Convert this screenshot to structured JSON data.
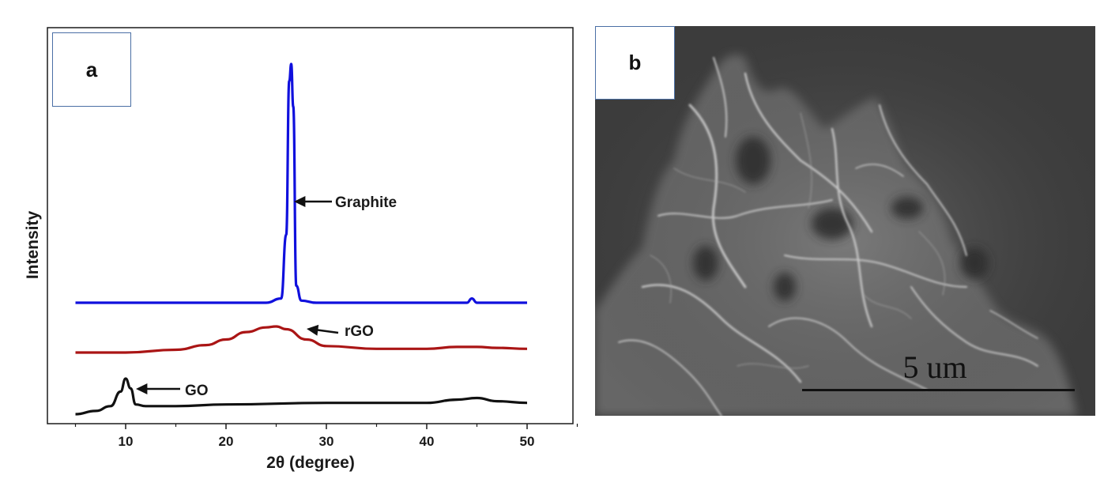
{
  "panel_a": {
    "label": "a",
    "chart_data": {
      "type": "line",
      "xlabel": "2θ (degree)",
      "ylabel": "Intensity",
      "xlim": [
        0,
        55
      ],
      "xticks": [
        10,
        20,
        30,
        40,
        50
      ],
      "y_ticks_shown": false,
      "grid": false,
      "series": [
        {
          "name": "Graphite",
          "color": "#1010dd",
          "x": [
            5,
            10,
            15,
            20,
            24,
            25.5,
            26.0,
            26.3,
            26.5,
            26.7,
            27.0,
            27.5,
            29,
            35,
            40,
            44,
            44.5,
            45,
            50
          ],
          "y": [
            0.44,
            0.44,
            0.44,
            0.44,
            0.44,
            0.45,
            0.6,
            0.96,
            1.0,
            0.9,
            0.48,
            0.445,
            0.44,
            0.44,
            0.44,
            0.44,
            0.45,
            0.44,
            0.44
          ]
        },
        {
          "name": "rGO",
          "color": "#aa1515",
          "x": [
            5,
            10,
            15,
            18,
            20,
            22,
            24,
            25,
            26,
            28,
            30,
            35,
            40,
            43,
            45,
            47,
            50
          ],
          "y": [
            0.18,
            0.18,
            0.195,
            0.22,
            0.25,
            0.29,
            0.315,
            0.32,
            0.305,
            0.25,
            0.215,
            0.2,
            0.2,
            0.21,
            0.21,
            0.205,
            0.2
          ]
        },
        {
          "name": "GO",
          "color": "#111111",
          "x": [
            5,
            7,
            8.5,
            9.5,
            10,
            10.5,
            11,
            12,
            15,
            20,
            30,
            40,
            43,
            45,
            47,
            50
          ],
          "y": [
            0.0,
            0.01,
            0.025,
            0.07,
            0.11,
            0.08,
            0.03,
            0.025,
            0.025,
            0.03,
            0.035,
            0.035,
            0.045,
            0.05,
            0.04,
            0.035
          ]
        }
      ],
      "annotations": [
        {
          "text": "Graphite",
          "series": "Graphite",
          "x": 26.6
        },
        {
          "text": "rGO",
          "series": "rGO",
          "x": 29.5
        },
        {
          "text": "GO",
          "series": "GO",
          "x": 10.6
        }
      ]
    }
  },
  "panel_b": {
    "label": "b",
    "scale_bar_label": "5 um"
  }
}
